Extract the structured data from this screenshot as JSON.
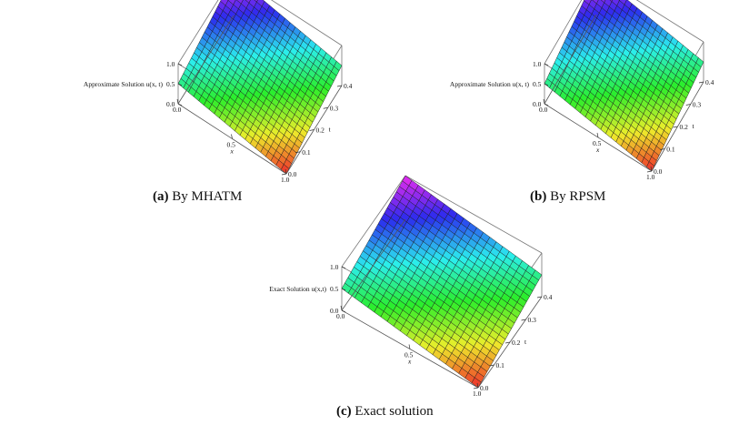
{
  "captions": [
    {
      "tag": "(a)",
      "text": "By MHATM"
    },
    {
      "tag": "(b)",
      "text": "By RPSM"
    },
    {
      "tag": "(c)",
      "text": "Exact solution"
    }
  ],
  "chart_data": [
    {
      "type": "surface3d",
      "zlabel": "Approximate Solution u(x, t)",
      "xlabel": "x",
      "ylabel": "t",
      "xlim": [
        0,
        1
      ],
      "ylim": [
        0,
        0.4
      ],
      "zlim": [
        0,
        1
      ],
      "x_ticks": [
        "0.0",
        "0.5",
        "1.0"
      ],
      "t_ticks": [
        "0.0",
        "0.1",
        "0.2",
        "0.3",
        "0.4"
      ],
      "z_ticks": [
        "0.0",
        "0.5",
        "1.0"
      ],
      "grid_x": 21,
      "grid_t": 21,
      "z_at_corners": {
        "x0_t0": 0.5,
        "x0_t0.4": 1.0,
        "x1_t0": 0.0,
        "x1_t0.4": 0.5
      }
    },
    {
      "type": "surface3d",
      "zlabel": "Approximate Solution u(x, t)",
      "xlabel": "x",
      "ylabel": "t",
      "xlim": [
        0,
        1
      ],
      "ylim": [
        0,
        0.4
      ],
      "zlim": [
        0,
        1
      ],
      "x_ticks": [
        "0.0",
        "0.5",
        "1.0"
      ],
      "t_ticks": [
        "0.0",
        "0.1",
        "0.2",
        "0.3",
        "0.4"
      ],
      "z_ticks": [
        "0.0",
        "0.5",
        "1.0"
      ],
      "grid_x": 21,
      "grid_t": 21,
      "z_at_corners": {
        "x0_t0": 0.5,
        "x0_t0.4": 1.0,
        "x1_t0": 0.0,
        "x1_t0.4": 0.5
      }
    },
    {
      "type": "surface3d",
      "zlabel": "Exact Solution u(x,t)",
      "xlabel": "x",
      "ylabel": "t",
      "xlim": [
        0,
        1
      ],
      "ylim": [
        0,
        0.4
      ],
      "zlim": [
        0,
        1
      ],
      "x_ticks": [
        "0.0",
        "0.5",
        "1.0"
      ],
      "t_ticks": [
        "0.0",
        "0.1",
        "0.2",
        "0.3",
        "0.4"
      ],
      "z_ticks": [
        "0.0",
        "0.5",
        "1.0"
      ],
      "grid_x": 21,
      "grid_t": 21,
      "z_at_corners": {
        "x0_t0": 0.5,
        "x0_t0.4": 1.0,
        "x1_t0": 0.0,
        "x1_t0.4": 0.5
      }
    }
  ]
}
